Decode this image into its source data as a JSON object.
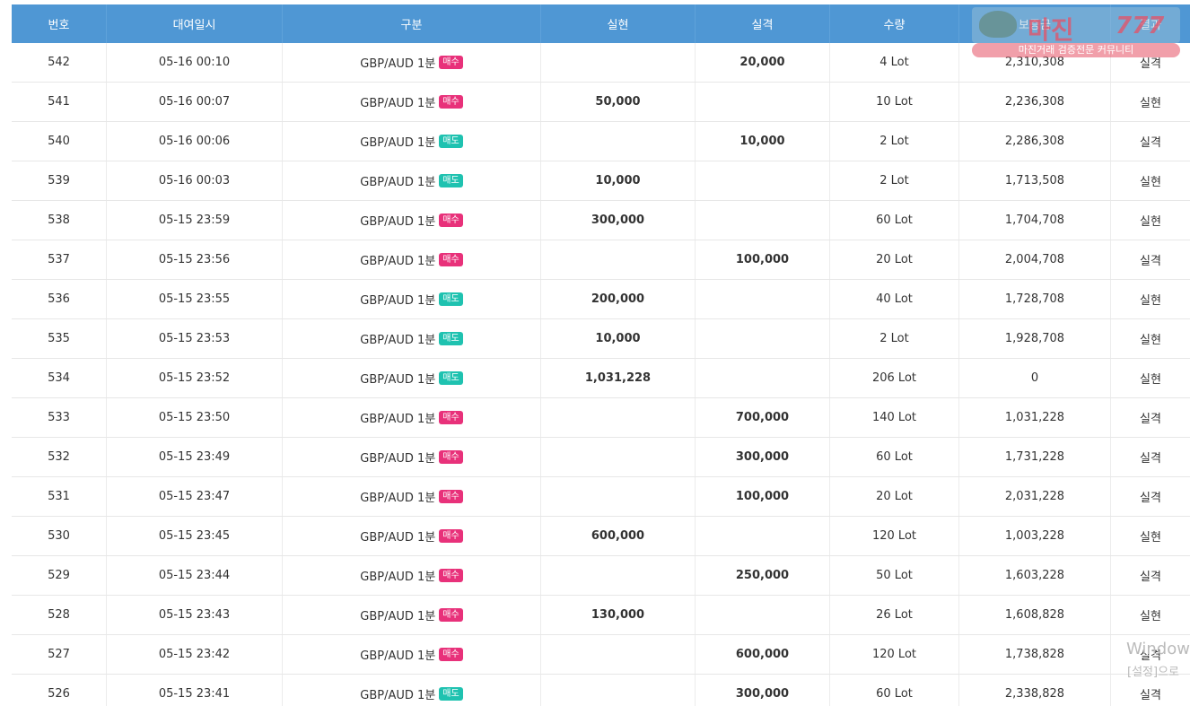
{
  "columns": [
    "번호",
    "대여일시",
    "구분",
    "실현",
    "실격",
    "수량",
    "보증금",
    "결과"
  ],
  "watermark": {
    "title": "마진",
    "mark": "777",
    "subtitle": "마진거래 검증전문 커뮤니티"
  },
  "os_notice": {
    "line1": "Window",
    "line2": "[설정]으로"
  },
  "rows": [
    {
      "no": "542",
      "date": "05-16 00:10",
      "pair": "GBP/AUD 1분",
      "badge": "매수",
      "badge_type": "buy",
      "realized": "",
      "loss": "20,000",
      "lot": "4 Lot",
      "deposit": "2,310,308",
      "result": "실격",
      "result_type": "loss"
    },
    {
      "no": "541",
      "date": "05-16 00:07",
      "pair": "GBP/AUD 1분",
      "badge": "매수",
      "badge_type": "buy",
      "realized": "50,000",
      "loss": "",
      "lot": "10 Lot",
      "deposit": "2,236,308",
      "result": "실현",
      "result_type": "win"
    },
    {
      "no": "540",
      "date": "05-16 00:06",
      "pair": "GBP/AUD 1분",
      "badge": "매도",
      "badge_type": "sell",
      "realized": "",
      "loss": "10,000",
      "lot": "2 Lot",
      "deposit": "2,286,308",
      "result": "실격",
      "result_type": "loss"
    },
    {
      "no": "539",
      "date": "05-16 00:03",
      "pair": "GBP/AUD 1분",
      "badge": "매도",
      "badge_type": "sell",
      "realized": "10,000",
      "loss": "",
      "lot": "2 Lot",
      "deposit": "1,713,508",
      "result": "실현",
      "result_type": "win"
    },
    {
      "no": "538",
      "date": "05-15 23:59",
      "pair": "GBP/AUD 1분",
      "badge": "매수",
      "badge_type": "buy",
      "realized": "300,000",
      "loss": "",
      "lot": "60 Lot",
      "deposit": "1,704,708",
      "result": "실현",
      "result_type": "win"
    },
    {
      "no": "537",
      "date": "05-15 23:56",
      "pair": "GBP/AUD 1분",
      "badge": "매수",
      "badge_type": "buy",
      "realized": "",
      "loss": "100,000",
      "lot": "20 Lot",
      "deposit": "2,004,708",
      "result": "실격",
      "result_type": "loss"
    },
    {
      "no": "536",
      "date": "05-15 23:55",
      "pair": "GBP/AUD 1분",
      "badge": "매도",
      "badge_type": "sell",
      "realized": "200,000",
      "loss": "",
      "lot": "40 Lot",
      "deposit": "1,728,708",
      "result": "실현",
      "result_type": "win"
    },
    {
      "no": "535",
      "date": "05-15 23:53",
      "pair": "GBP/AUD 1분",
      "badge": "매도",
      "badge_type": "sell",
      "realized": "10,000",
      "loss": "",
      "lot": "2 Lot",
      "deposit": "1,928,708",
      "result": "실현",
      "result_type": "win"
    },
    {
      "no": "534",
      "date": "05-15 23:52",
      "pair": "GBP/AUD 1분",
      "badge": "매도",
      "badge_type": "sell",
      "realized": "1,031,228",
      "loss": "",
      "lot": "206 Lot",
      "deposit": "0",
      "result": "실현",
      "result_type": "win"
    },
    {
      "no": "533",
      "date": "05-15 23:50",
      "pair": "GBP/AUD 1분",
      "badge": "매수",
      "badge_type": "buy",
      "realized": "",
      "loss": "700,000",
      "lot": "140 Lot",
      "deposit": "1,031,228",
      "result": "실격",
      "result_type": "loss"
    },
    {
      "no": "532",
      "date": "05-15 23:49",
      "pair": "GBP/AUD 1분",
      "badge": "매수",
      "badge_type": "buy",
      "realized": "",
      "loss": "300,000",
      "lot": "60 Lot",
      "deposit": "1,731,228",
      "result": "실격",
      "result_type": "loss"
    },
    {
      "no": "531",
      "date": "05-15 23:47",
      "pair": "GBP/AUD 1분",
      "badge": "매수",
      "badge_type": "buy",
      "realized": "",
      "loss": "100,000",
      "lot": "20 Lot",
      "deposit": "2,031,228",
      "result": "실격",
      "result_type": "loss"
    },
    {
      "no": "530",
      "date": "05-15 23:45",
      "pair": "GBP/AUD 1분",
      "badge": "매수",
      "badge_type": "buy",
      "realized": "600,000",
      "loss": "",
      "lot": "120 Lot",
      "deposit": "1,003,228",
      "result": "실현",
      "result_type": "win"
    },
    {
      "no": "529",
      "date": "05-15 23:44",
      "pair": "GBP/AUD 1분",
      "badge": "매수",
      "badge_type": "buy",
      "realized": "",
      "loss": "250,000",
      "lot": "50 Lot",
      "deposit": "1,603,228",
      "result": "실격",
      "result_type": "loss"
    },
    {
      "no": "528",
      "date": "05-15 23:43",
      "pair": "GBP/AUD 1분",
      "badge": "매수",
      "badge_type": "buy",
      "realized": "130,000",
      "loss": "",
      "lot": "26 Lot",
      "deposit": "1,608,828",
      "result": "실현",
      "result_type": "win"
    },
    {
      "no": "527",
      "date": "05-15 23:42",
      "pair": "GBP/AUD 1분",
      "badge": "매수",
      "badge_type": "buy",
      "realized": "",
      "loss": "600,000",
      "lot": "120 Lot",
      "deposit": "1,738,828",
      "result": "실격",
      "result_type": "loss"
    },
    {
      "no": "526",
      "date": "05-15 23:41",
      "pair": "GBP/AUD 1분",
      "badge": "매도",
      "badge_type": "sell",
      "realized": "",
      "loss": "300,000",
      "lot": "60 Lot",
      "deposit": "2,338,828",
      "result": "실격",
      "result_type": "loss"
    }
  ]
}
